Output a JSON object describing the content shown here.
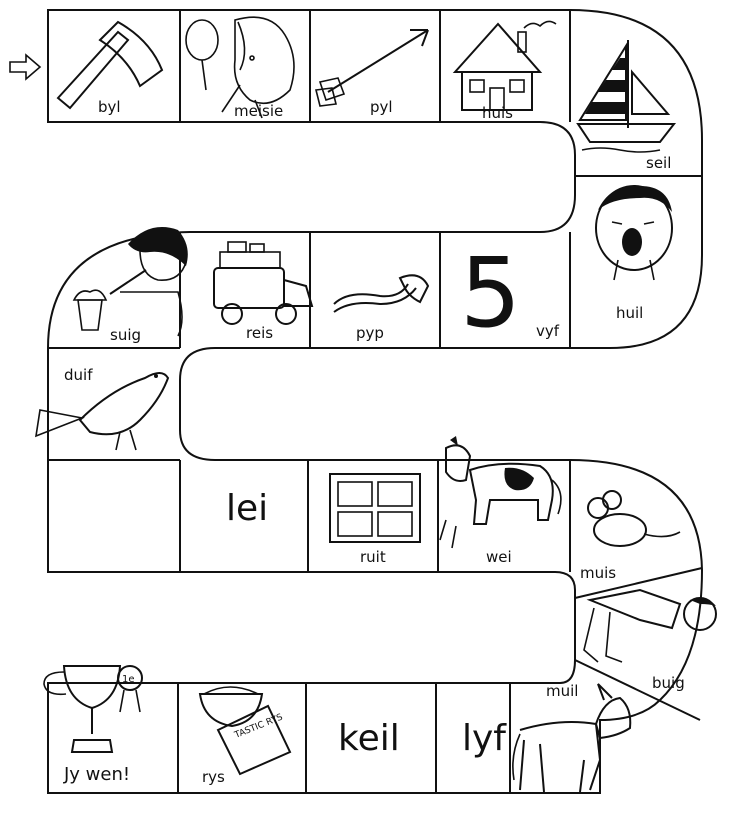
{
  "start_arrow": "start-arrow",
  "squares": [
    {
      "id": 1,
      "word": "byl",
      "icon": "axe-icon"
    },
    {
      "id": 2,
      "word": "meisie",
      "icon": "girl-with-mirror-icon"
    },
    {
      "id": 3,
      "word": "pyl",
      "icon": "arrow-icon"
    },
    {
      "id": 4,
      "word": "huis",
      "icon": "house-icon"
    },
    {
      "id": 5,
      "word": "seil",
      "icon": "sailboat-icon"
    },
    {
      "id": 6,
      "word": "huil",
      "icon": "crying-boy-icon"
    },
    {
      "id": 7,
      "word": "vyf",
      "icon": "number-five",
      "big_text": "5"
    },
    {
      "id": 8,
      "word": "pyp",
      "icon": "pipe-icon"
    },
    {
      "id": 9,
      "word": "reis",
      "icon": "loaded-car-icon"
    },
    {
      "id": 10,
      "word": "suig",
      "icon": "boy-drinking-icon"
    },
    {
      "id": 11,
      "word": "duif",
      "icon": "dove-icon"
    },
    {
      "id": 12,
      "word": "lei",
      "icon": "none",
      "big_text": "lei"
    },
    {
      "id": 13,
      "word": "ruit",
      "icon": "window-pane-icon"
    },
    {
      "id": 14,
      "word": "wei",
      "icon": "cow-grazing-icon"
    },
    {
      "id": 15,
      "word": "muis",
      "icon": "mouse-icon"
    },
    {
      "id": 16,
      "word": "buig",
      "icon": "boy-bending-icon"
    },
    {
      "id": 17,
      "word": "muil",
      "icon": "donkey-icon"
    },
    {
      "id": 18,
      "word": "lyf",
      "icon": "none",
      "big_text": "lyf"
    },
    {
      "id": 19,
      "word": "keil",
      "icon": "none",
      "big_text": "keil"
    },
    {
      "id": 20,
      "word": "rys",
      "icon": "rice-bowl-icon"
    },
    {
      "id": 21,
      "word": "Jy wen!",
      "icon": "trophy-icon"
    }
  ],
  "trophy_badge": "1e",
  "rice_packet_text": "TASTIC RYS"
}
